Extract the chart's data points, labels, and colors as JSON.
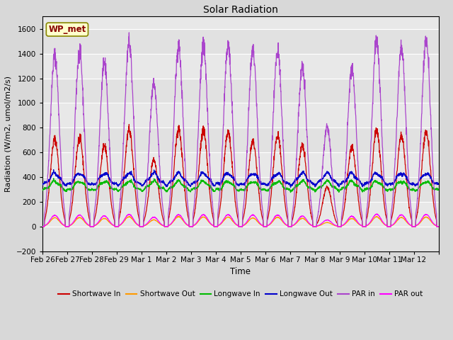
{
  "title": "Solar Radiation",
  "xlabel": "Time",
  "ylabel": "Radiation (W/m2, umol/m2/s)",
  "ylim": [
    -200,
    1700
  ],
  "yticks": [
    -200,
    0,
    200,
    400,
    600,
    800,
    1000,
    1200,
    1400,
    1600
  ],
  "date_labels": [
    "Feb 26",
    "Feb 27",
    "Feb 28",
    "Feb 29",
    "Mar 1",
    "Mar 2",
    "Mar 3",
    "Mar 4",
    "Mar 5",
    "Mar 6",
    "Mar 7",
    "Mar 8",
    "Mar 9",
    "Mar 10",
    "Mar 11",
    "Mar 12"
  ],
  "station_label": "WP_met",
  "series": {
    "shortwave_in": {
      "color": "#cc0000",
      "label": "Shortwave In"
    },
    "shortwave_out": {
      "color": "#ff9900",
      "label": "Shortwave Out"
    },
    "longwave_in": {
      "color": "#00bb00",
      "label": "Longwave In"
    },
    "longwave_out": {
      "color": "#0000cc",
      "label": "Longwave Out"
    },
    "par_in": {
      "color": "#aa44cc",
      "label": "PAR in"
    },
    "par_out": {
      "color": "#ff00ff",
      "label": "PAR out"
    }
  },
  "background_color": "#d8d8d8",
  "plot_bg_color": "#e8e8e8",
  "grid_color": "#ffffff",
  "n_days": 16,
  "pts_per_day": 144,
  "day_peaks_sw_in": [
    710,
    720,
    650,
    790,
    540,
    790,
    775,
    760,
    690,
    740,
    660,
    320,
    640,
    780,
    735,
    760
  ],
  "day_peaks_par_in": [
    1390,
    1420,
    1320,
    1500,
    1160,
    1460,
    1460,
    1460,
    1430,
    1430,
    1300,
    810,
    1270,
    1510,
    1450,
    1500
  ],
  "lw_base": 295,
  "lw_out_base": 340,
  "lw_amplitude": 70,
  "sw_out_factor": 0.1,
  "par_out_factor": 0.065
}
